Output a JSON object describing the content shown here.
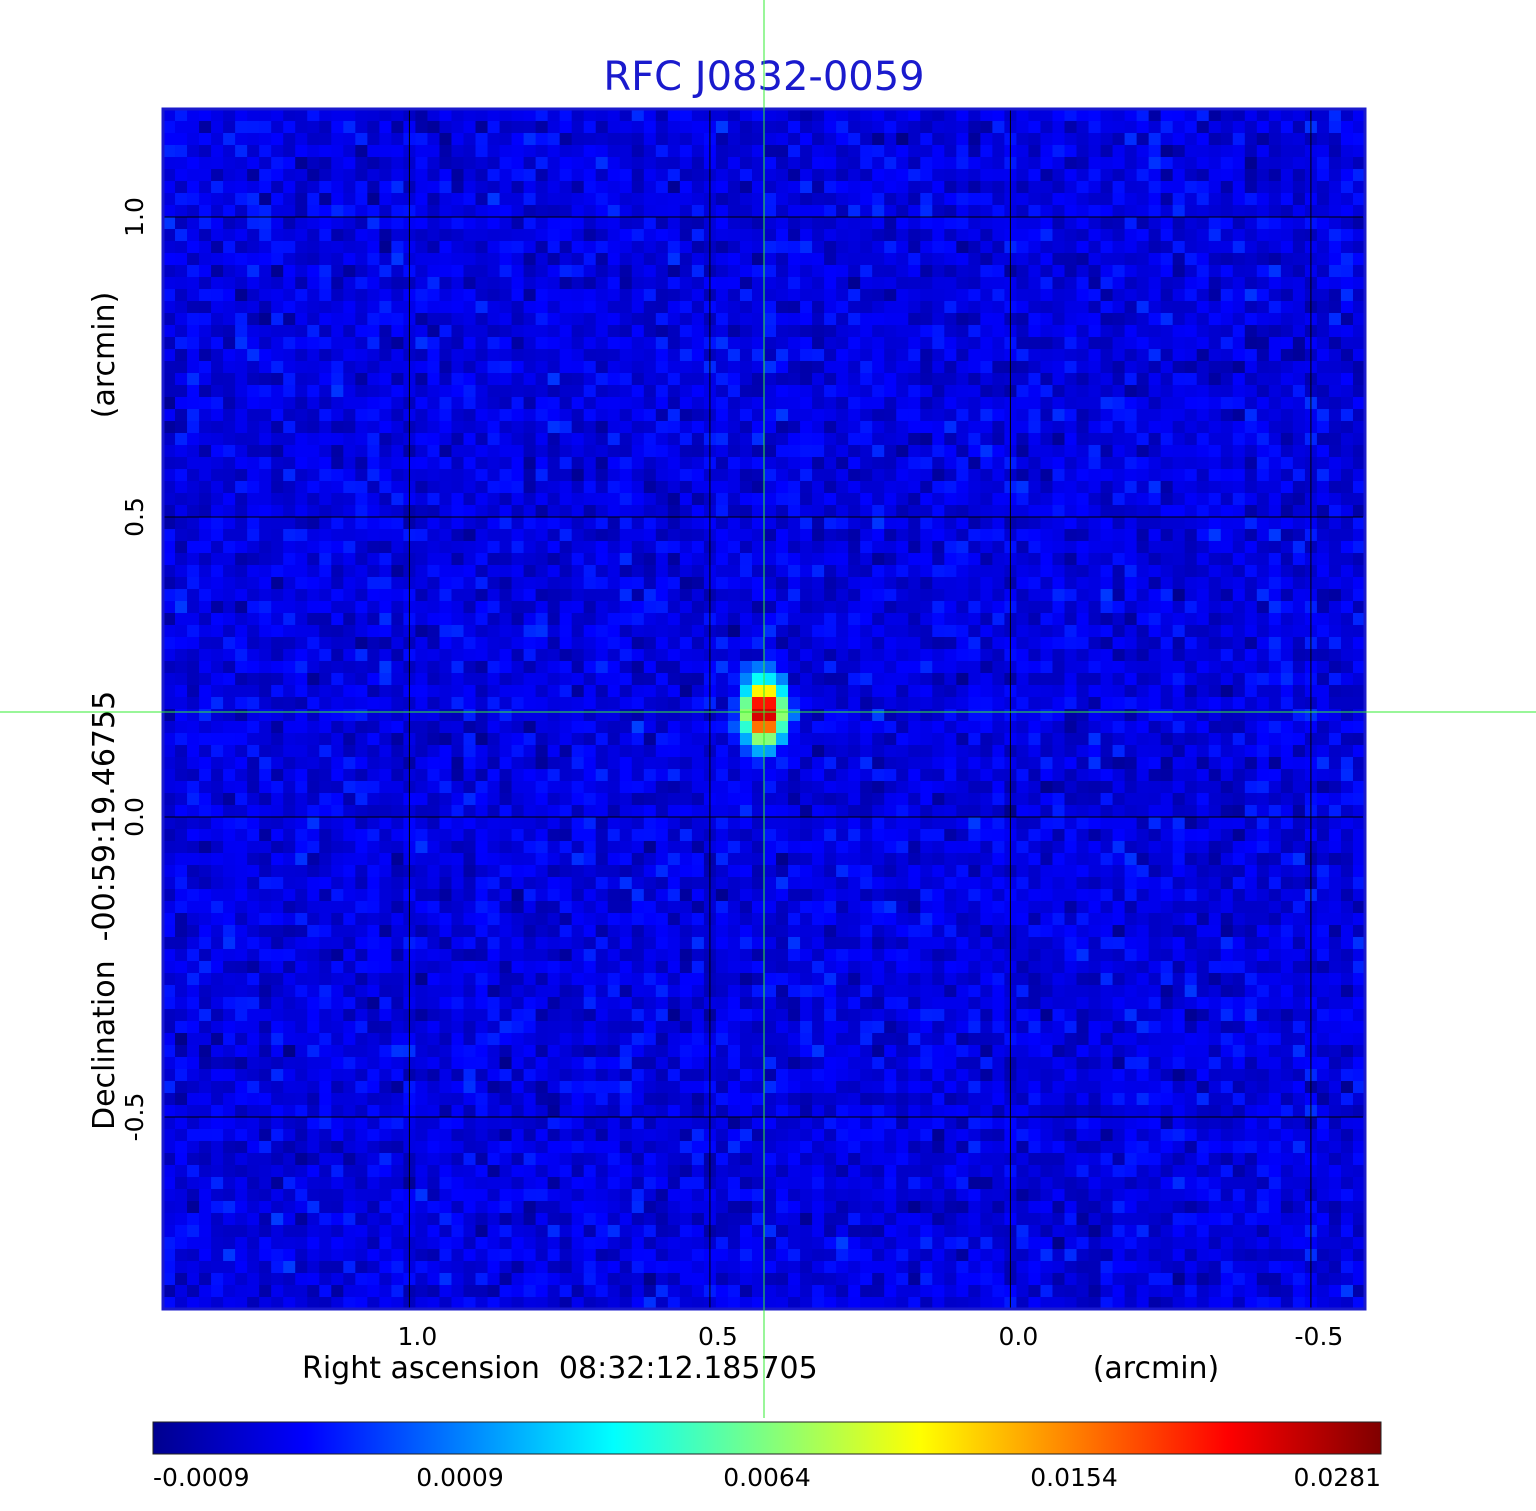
{
  "chart_data": {
    "type": "heatmap",
    "title": "RFC J0832-0059",
    "xlabel": "Right ascension  08:32:12.185705",
    "xunit": "(arcmin)",
    "ylabel": "Declination  -00:59:19.46755",
    "yunit": "(arcmin)",
    "xlim": [
      1.41,
      -0.59
    ],
    "ylim": [
      -0.82,
      1.18
    ],
    "x_ticks": [
      {
        "value": 1.0,
        "label": "1.0"
      },
      {
        "value": 0.5,
        "label": "0.5"
      },
      {
        "value": 0.0,
        "label": "0.0"
      },
      {
        "value": -0.5,
        "label": "-0.5"
      }
    ],
    "y_ticks": [
      {
        "value": 1.0,
        "label": "1.0"
      },
      {
        "value": 0.5,
        "label": "0.5"
      },
      {
        "value": 0.0,
        "label": "0.0"
      },
      {
        "value": -0.5,
        "label": "-0.5"
      }
    ],
    "grid": true,
    "crosshair": {
      "x": 0.41,
      "y": 0.175
    },
    "source": {
      "x": 0.41,
      "y": 0.175,
      "peak": 0.0281
    },
    "colormap": "jet",
    "colorbar": {
      "min": -0.0009,
      "max": 0.0281,
      "tick_labels": [
        "-0.0009",
        "0.0009",
        "0.0064",
        "0.0154",
        "0.0281"
      ]
    }
  }
}
